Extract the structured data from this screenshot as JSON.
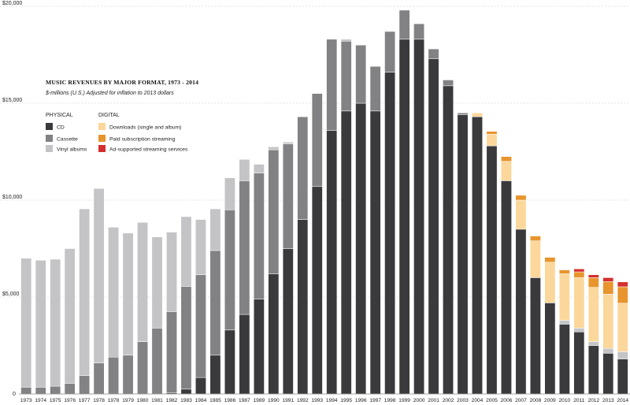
{
  "chart_data": {
    "type": "bar",
    "stacked": true,
    "title": "MUSIC REVENUES BY MAJOR FORMAT, 1973 - 2014",
    "subtitle": "$-millions (U.S.) Adjusted for inflation to 2013 dollars",
    "ylim": [
      0,
      20000
    ],
    "ytick_values": [
      0,
      5000,
      10000,
      15000,
      20000
    ],
    "ytick_labels": [
      "0",
      "$5,000",
      "$10,000",
      "$15,000",
      "$20,000"
    ],
    "grid": true,
    "legend_placement": "upper-left",
    "legend_groups": [
      {
        "label": "PHYSICAL",
        "series": [
          "CD",
          "Cassette",
          "Vinyl albums"
        ]
      },
      {
        "label": "DIGITAL",
        "series": [
          "Downloads (single and album)",
          "Paid subscription streaming",
          "Ad-supported streaming services"
        ]
      }
    ],
    "categories": [
      "1973",
      "1974",
      "1975",
      "1976",
      "1977",
      "1978",
      "1978",
      "1979",
      "1980",
      "1981",
      "1982",
      "1983",
      "1984",
      "1985",
      "1986",
      "1987",
      "1989",
      "1990",
      "1991",
      "1992",
      "1993",
      "1994",
      "1995",
      "1996",
      "1997",
      "1998",
      "1999",
      "2000",
      "2001",
      "2002",
      "2003",
      "2004",
      "2005",
      "2006",
      "2007",
      "2008",
      "2009",
      "2010",
      "2011",
      "2012",
      "2013",
      "2014"
    ],
    "series": [
      {
        "name": "CD",
        "color": "#3a3a3c",
        "values": [
          0,
          0,
          0,
          0,
          0,
          0,
          0,
          0,
          0,
          0,
          50,
          250,
          850,
          2000,
          3300,
          4100,
          4900,
          6200,
          7500,
          9000,
          10700,
          13600,
          14600,
          15000,
          14600,
          16600,
          18300,
          18300,
          17300,
          15900,
          14400,
          14300,
          12800,
          11000,
          8500,
          6000,
          4700,
          3600,
          3200,
          2500,
          2100,
          1800
        ]
      },
      {
        "name": "Cassette",
        "color": "#828284",
        "values": [
          350,
          350,
          400,
          550,
          950,
          1600,
          1900,
          2000,
          2700,
          3400,
          4200,
          5300,
          5300,
          5400,
          6200,
          6900,
          6500,
          6400,
          5400,
          5300,
          4800,
          4700,
          3600,
          3000,
          2300,
          2100,
          1500,
          800,
          500,
          300,
          100,
          0,
          0,
          0,
          0,
          0,
          0,
          0,
          0,
          0,
          0,
          0
        ]
      },
      {
        "name": "Vinyl albums",
        "color": "#c4c4c6",
        "values": [
          6650,
          6550,
          6550,
          6950,
          8600,
          9000,
          6700,
          6300,
          6150,
          4700,
          4100,
          3600,
          2850,
          2150,
          1650,
          1100,
          450,
          150,
          100,
          0,
          0,
          0,
          100,
          0,
          0,
          0,
          0,
          0,
          0,
          0,
          0,
          0,
          0,
          0,
          0,
          0,
          0,
          200,
          200,
          200,
          250,
          380
        ]
      },
      {
        "name": "Downloads (single and album)",
        "color": "#fbd79b",
        "values": [
          0,
          0,
          0,
          0,
          0,
          0,
          0,
          0,
          0,
          0,
          0,
          0,
          0,
          0,
          0,
          0,
          0,
          0,
          0,
          0,
          0,
          0,
          0,
          0,
          0,
          0,
          0,
          0,
          0,
          0,
          0,
          200,
          600,
          1000,
          1500,
          1900,
          2100,
          2400,
          2600,
          2800,
          2800,
          2500
        ]
      },
      {
        "name": "Paid subscription streaming",
        "color": "#e8952e",
        "values": [
          0,
          0,
          0,
          0,
          0,
          0,
          0,
          0,
          0,
          0,
          0,
          0,
          0,
          0,
          0,
          0,
          0,
          0,
          0,
          0,
          0,
          0,
          0,
          0,
          0,
          0,
          0,
          0,
          0,
          0,
          0,
          0,
          150,
          250,
          250,
          250,
          250,
          200,
          300,
          500,
          650,
          850
        ]
      },
      {
        "name": "Ad-supported streaming services",
        "color": "#d42e2e",
        "values": [
          0,
          0,
          0,
          0,
          0,
          0,
          0,
          0,
          0,
          0,
          0,
          0,
          0,
          0,
          0,
          0,
          0,
          0,
          0,
          0,
          0,
          0,
          0,
          0,
          0,
          0,
          0,
          0,
          0,
          0,
          0,
          0,
          0,
          0,
          0,
          0,
          0,
          0,
          150,
          150,
          200,
          250
        ]
      }
    ]
  }
}
